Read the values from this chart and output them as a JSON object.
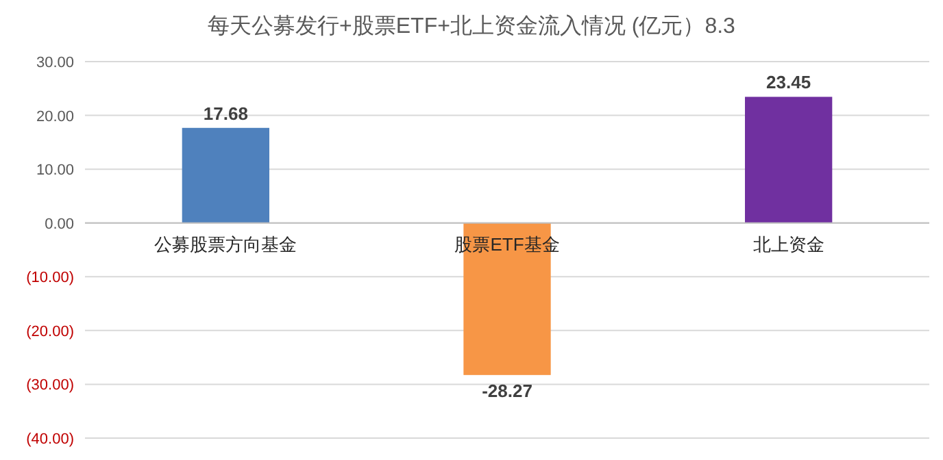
{
  "chart_data": {
    "type": "bar",
    "title": "每天公募发行+股票ETF+北上资金流入情况 (亿元）8.3",
    "categories": [
      "公募股票方向基金",
      "股票ETF基金",
      "北上资金"
    ],
    "values": [
      17.68,
      -28.27,
      23.45
    ],
    "colors": [
      "#4f81bd",
      "#f79646",
      "#7030a0"
    ],
    "ylim": [
      -40,
      30
    ],
    "yticks": [
      {
        "value": 30,
        "label": "30.00"
      },
      {
        "value": 20,
        "label": "20.00"
      },
      {
        "value": 10,
        "label": "10.00"
      },
      {
        "value": 0,
        "label": "0.00"
      },
      {
        "value": -10,
        "label": "(10.00)"
      },
      {
        "value": -20,
        "label": "(20.00)"
      },
      {
        "value": -30,
        "label": "(30.00)"
      },
      {
        "value": -40,
        "label": "(40.00)"
      }
    ],
    "grid": "y",
    "data_labels": true
  }
}
